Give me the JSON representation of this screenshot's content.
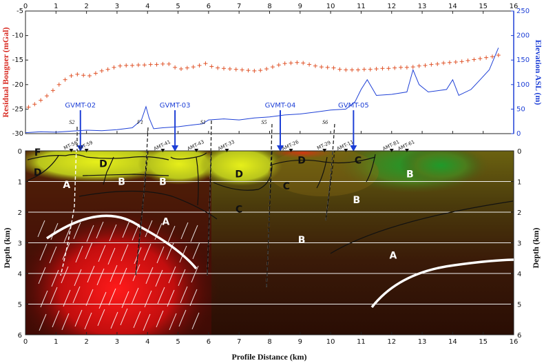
{
  "chart_data": [
    {
      "type": "line",
      "panel": "top",
      "xlim": [
        0,
        16
      ],
      "x_ticks": [
        "0",
        "1",
        "2",
        "3",
        "4",
        "5",
        "6",
        "7",
        "8",
        "9",
        "10",
        "11",
        "12",
        "13",
        "14",
        "15",
        "16"
      ],
      "left_axis": {
        "label": "Residual Bouguer (mGal)",
        "ylim": [
          -30,
          -5
        ],
        "ticks": [
          "-30",
          "-25",
          "-20",
          "-15",
          "-10",
          "-5"
        ],
        "color": "#d8281f"
      },
      "right_axis": {
        "label": "Elevation ASL (m)",
        "ylim": [
          0,
          250
        ],
        "ticks": [
          "0",
          "50",
          "100",
          "150",
          "200",
          "250"
        ],
        "color": "#1d3fd6"
      },
      "series": [
        {
          "name": "Residual Bouguer",
          "marker": "+",
          "axis": "left",
          "color": "#e0542a",
          "x": [
            0.1,
            0.3,
            0.5,
            0.7,
            0.9,
            1.1,
            1.3,
            1.5,
            1.7,
            1.9,
            2.1,
            2.3,
            2.5,
            2.7,
            2.9,
            3.1,
            3.3,
            3.5,
            3.7,
            3.9,
            4.1,
            4.3,
            4.5,
            4.7,
            4.9,
            5.1,
            5.3,
            5.5,
            5.7,
            5.9,
            6.1,
            6.3,
            6.5,
            6.7,
            6.9,
            7.1,
            7.3,
            7.5,
            7.7,
            7.9,
            8.1,
            8.3,
            8.5,
            8.7,
            8.9,
            9.1,
            9.3,
            9.5,
            9.7,
            9.9,
            10.1,
            10.3,
            10.5,
            10.7,
            10.9,
            11.1,
            11.3,
            11.5,
            11.7,
            11.9,
            12.1,
            12.3,
            12.5,
            12.7,
            12.9,
            13.1,
            13.3,
            13.5,
            13.7,
            13.9,
            14.1,
            14.3,
            14.5,
            14.7,
            14.9,
            15.1,
            15.3,
            15.5
          ],
          "values": [
            -24.6,
            -24,
            -23.2,
            -22.3,
            -21.2,
            -20,
            -19,
            -18.2,
            -17.9,
            -18.1,
            -18.2,
            -17.7,
            -17.2,
            -16.9,
            -16.5,
            -16.2,
            -16.1,
            -16.1,
            -16,
            -16,
            -15.9,
            -15.9,
            -15.8,
            -15.8,
            -16.5,
            -16.8,
            -16.6,
            -16.4,
            -16.1,
            -15.7,
            -16.3,
            -16.6,
            -16.7,
            -16.8,
            -16.9,
            -17,
            -17.1,
            -17.2,
            -17.1,
            -16.8,
            -16.4,
            -16,
            -15.7,
            -15.6,
            -15.5,
            -15.6,
            -15.9,
            -16.2,
            -16.4,
            -16.5,
            -16.6,
            -16.9,
            -17,
            -17,
            -17,
            -16.9,
            -16.9,
            -16.8,
            -16.7,
            -16.7,
            -16.6,
            -16.5,
            -16.5,
            -16.4,
            -16.2,
            -16.1,
            -15.9,
            -15.8,
            -15.6,
            -15.5,
            -15.4,
            -15.3,
            -15.1,
            -14.9,
            -14.7,
            -14.5,
            -14.3,
            -14.0
          ]
        },
        {
          "name": "Elevation",
          "axis": "right",
          "color": "#1d3fd6",
          "x": [
            0,
            0.5,
            1,
            1.5,
            2,
            2.5,
            3,
            3.5,
            3.8,
            3.95,
            4.05,
            4.2,
            4.5,
            5,
            5.5,
            5.8,
            6,
            6.5,
            7,
            7.5,
            8,
            8.5,
            9,
            9.5,
            10,
            10.5,
            10.8,
            11,
            11.2,
            11.5,
            12,
            12.5,
            12.7,
            12.9,
            13.2,
            13.8,
            14,
            14.2,
            14.6,
            14.9,
            15.2,
            15.5
          ],
          "values": [
            2,
            4,
            3,
            5,
            7,
            6,
            8,
            12,
            28,
            55,
            32,
            10,
            12,
            14,
            18,
            20,
            28,
            30,
            28,
            32,
            34,
            38,
            40,
            44,
            48,
            50,
            65,
            90,
            110,
            78,
            80,
            85,
            130,
            100,
            85,
            90,
            110,
            78,
            90,
            110,
            130,
            175
          ]
        }
      ],
      "stations": [
        "GVMT-02",
        "GVMT-03",
        "GVMT-04",
        "GVMT-05"
      ],
      "station_x": [
        1.8,
        4.9,
        8.35,
        10.75
      ]
    },
    {
      "type": "heatmap",
      "panel": "bottom",
      "xlabel": "Profile Distance (km)",
      "ylabel": "Depth (km)",
      "right_ylabel": "Depth (km)",
      "xlim": [
        0,
        16
      ],
      "ylim": [
        6,
        0
      ],
      "x_ticks": [
        "0",
        "1",
        "2",
        "3",
        "4",
        "5",
        "6",
        "7",
        "8",
        "9",
        "10",
        "11",
        "12",
        "13",
        "14",
        "15",
        "16"
      ],
      "y_ticks": [
        "0",
        "1",
        "2",
        "3",
        "4",
        "5",
        "6"
      ],
      "fault_labels": [
        "S2",
        "F1",
        "S1",
        "S5",
        "S6"
      ],
      "fault_x": [
        1.7,
        3.95,
        6.0,
        8.0,
        10.0
      ],
      "amt_labels": [
        "MT-56",
        "MT-59",
        "AMT-41",
        "AMT-43",
        "AMT-33",
        "AMT-26",
        "MT-29",
        "AMT-11",
        "AMT-81",
        "AMT-61"
      ],
      "amt_x": [
        1.5,
        2.0,
        4.5,
        5.6,
        6.6,
        8.7,
        9.8,
        10.5,
        12.0,
        12.5
      ],
      "unit_labels": [
        {
          "text": "F",
          "x": 0.4,
          "y": 0.05
        },
        {
          "text": "D",
          "x": 0.4,
          "y": 0.7
        },
        {
          "text": "A",
          "x": 1.35,
          "y": 1.1
        },
        {
          "text": "D",
          "x": 2.55,
          "y": 0.42
        },
        {
          "text": "B",
          "x": 3.15,
          "y": 1.0
        },
        {
          "text": "B",
          "x": 4.5,
          "y": 1.0
        },
        {
          "text": "D",
          "x": 7.0,
          "y": 0.75
        },
        {
          "text": "C",
          "x": 7.0,
          "y": 1.9
        },
        {
          "text": "D",
          "x": 9.05,
          "y": 0.3
        },
        {
          "text": "C",
          "x": 8.55,
          "y": 1.15
        },
        {
          "text": "C",
          "x": 10.9,
          "y": 0.3
        },
        {
          "text": "B",
          "x": 10.85,
          "y": 1.6
        },
        {
          "text": "B",
          "x": 12.6,
          "y": 0.75
        },
        {
          "text": "A",
          "x": 4.6,
          "y": 2.3
        },
        {
          "text": "B",
          "x": 9.05,
          "y": 2.9
        },
        {
          "text": "A",
          "x": 12.05,
          "y": 3.4
        }
      ]
    }
  ]
}
